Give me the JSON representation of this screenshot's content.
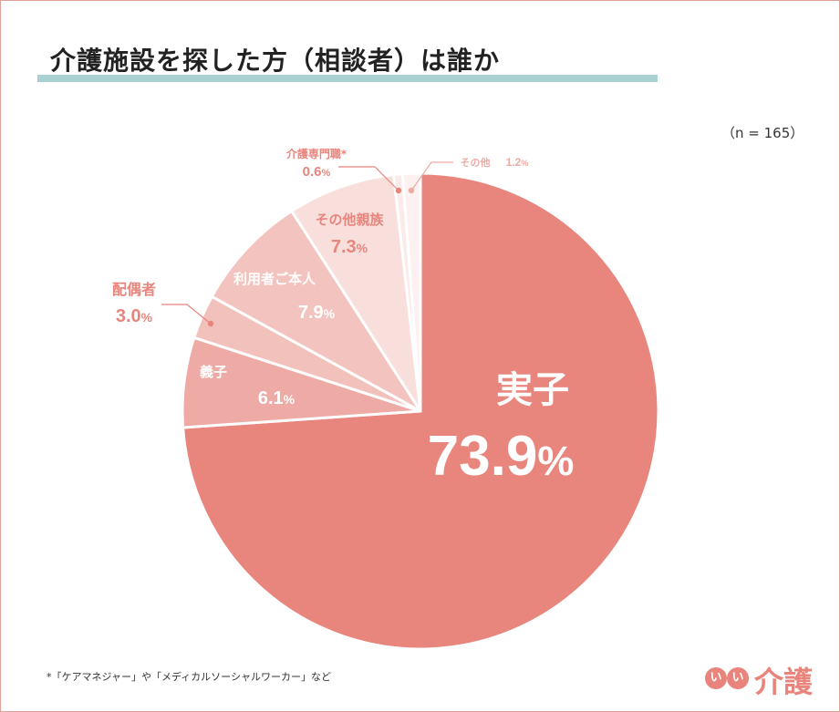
{
  "title": "介護施設を探した方（相談者）は誰か",
  "sample_size": "（n = 165）",
  "footnote": "*「ケアマネジャー」や「メディカルソーシャルワーカー」など",
  "logo": {
    "badge1": "い",
    "badge2": "い",
    "text": "介護"
  },
  "chart_data": {
    "type": "pie",
    "unit": "%",
    "start": "12 o'clock, clockwise",
    "slices": [
      {
        "label": "実子",
        "value": 73.9,
        "color": "#e8857d"
      },
      {
        "label": "義子",
        "value": 6.1,
        "color": "#eeaaa5"
      },
      {
        "label": "配偶者",
        "value": 3.0,
        "color": "#f2c1bc"
      },
      {
        "label": "利用者ご本人",
        "value": 7.9,
        "color": "#f3c3bf"
      },
      {
        "label": "その他親族",
        "value": 7.3,
        "color": "#f8dfdc"
      },
      {
        "label": "介護専門職*",
        "value": 0.6,
        "color": "#faeae8"
      },
      {
        "label": "その他",
        "value": 1.2,
        "color": "#fcf1f0"
      }
    ]
  }
}
